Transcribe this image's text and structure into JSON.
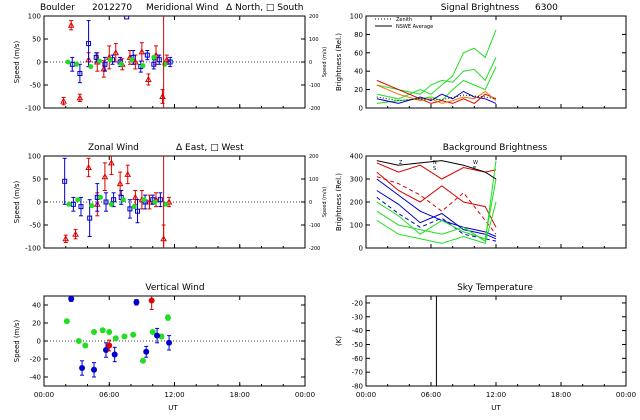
{
  "figure": {
    "site": "Boulder",
    "date_code": "2012270",
    "wavelength": "6300",
    "time_axis_label": "UT",
    "time_ticks": [
      "00:00",
      "06:00",
      "12:00",
      "18:00",
      "00:00"
    ]
  },
  "colors": {
    "north_east": "#dd0000",
    "south_west": "#0000cc",
    "zenith": "#22dd22",
    "orange": "#ee7700",
    "axis": "#000000"
  },
  "chart_data": [
    {
      "id": "meridional",
      "type": "scatter",
      "title": "Meridional Wind",
      "title_extra": "Δ North, □ South",
      "ylabel": "Speed (m/s)",
      "ylabel_right": "Speed (m/s)",
      "ylim": [
        -100,
        100
      ],
      "yticks": [
        -100,
        -50,
        0,
        50,
        100
      ],
      "right_ylim": [
        -200,
        200
      ],
      "right_yticks": [
        -200,
        -100,
        0,
        100,
        200
      ],
      "xlim": [
        0,
        24
      ],
      "series": [
        {
          "name": "North",
          "color": "#dd0000",
          "x": [
            1.8,
            2.5,
            3.3,
            4.1,
            4.9,
            5.5,
            6.0,
            6.6,
            7.2,
            7.9,
            8.4,
            9.0,
            9.6,
            10.3,
            10.9,
            11.3
          ],
          "y": [
            -85,
            80,
            -78,
            5,
            0,
            -15,
            10,
            20,
            -5,
            10,
            0,
            22,
            -38,
            15,
            -75,
            5
          ],
          "err": [
            8,
            10,
            8,
            15,
            20,
            18,
            25,
            20,
            12,
            15,
            15,
            20,
            12,
            20,
            15,
            10
          ]
        },
        {
          "name": "South",
          "color": "#0000cc",
          "x": [
            2.6,
            3.3,
            4.1,
            4.8,
            5.6,
            6.3,
            7.0,
            7.6,
            8.2,
            8.9,
            9.5,
            10.1,
            10.6,
            11.6
          ],
          "y": [
            -5,
            -25,
            40,
            10,
            -5,
            5,
            0,
            98,
            10,
            -10,
            15,
            -5,
            5,
            0
          ],
          "err": [
            15,
            20,
            50,
            10,
            15,
            10,
            10,
            0,
            15,
            12,
            10,
            10,
            10,
            10
          ]
        },
        {
          "name": "Zenith",
          "color": "#22dd22",
          "x": [
            2.2,
            3.0,
            4.3,
            5.1,
            6.1,
            7.1,
            8.1,
            9.1,
            10.1,
            11.1
          ],
          "y": [
            0,
            -5,
            -10,
            2,
            5,
            -5,
            5,
            -8,
            10,
            -5
          ],
          "err": [
            0,
            0,
            0,
            0,
            0,
            0,
            0,
            0,
            0,
            0
          ]
        }
      ]
    },
    {
      "id": "zonal",
      "type": "scatter",
      "title": "Zonal Wind",
      "title_extra": "Δ East, □ West",
      "ylabel": "Speed (m/s)",
      "ylabel_right": "Speed (m/s)",
      "ylim": [
        -100,
        100
      ],
      "yticks": [
        -100,
        -50,
        0,
        50,
        100
      ],
      "right_ylim": [
        -200,
        200
      ],
      "right_yticks": [
        -200,
        -100,
        0,
        100,
        200
      ],
      "xlim": [
        0,
        24
      ],
      "series": [
        {
          "name": "East",
          "color": "#dd0000",
          "x": [
            2.0,
            2.9,
            4.1,
            4.9,
            5.6,
            6.2,
            7.0,
            7.7,
            8.4,
            9.0,
            9.7,
            10.3,
            11.0,
            11.5
          ],
          "y": [
            -80,
            -70,
            75,
            -5,
            55,
            85,
            40,
            60,
            10,
            5,
            0,
            5,
            -80,
            0
          ],
          "err": [
            8,
            10,
            20,
            25,
            30,
            25,
            25,
            20,
            15,
            20,
            15,
            15,
            30,
            10
          ]
        },
        {
          "name": "West",
          "color": "#0000cc",
          "x": [
            1.9,
            2.7,
            3.4,
            4.2,
            4.9,
            5.7,
            6.4,
            7.1,
            7.9,
            8.6,
            9.3,
            10.0,
            10.7
          ],
          "y": [
            45,
            -5,
            -10,
            -35,
            10,
            0,
            5,
            10,
            -15,
            -20,
            0,
            5,
            5
          ],
          "err": [
            50,
            15,
            20,
            40,
            30,
            20,
            15,
            15,
            20,
            25,
            15,
            10,
            15
          ]
        },
        {
          "name": "Zenith",
          "color": "#22dd22",
          "x": [
            2.3,
            3.1,
            4.4,
            5.2,
            6.2,
            7.3,
            8.3,
            9.2,
            10.2,
            11.2
          ],
          "y": [
            -5,
            5,
            -8,
            10,
            -5,
            5,
            -10,
            5,
            0,
            -5
          ],
          "err": [
            0,
            0,
            0,
            0,
            0,
            0,
            0,
            0,
            0,
            0
          ]
        }
      ]
    },
    {
      "id": "vertical",
      "type": "scatter",
      "title": "Vertical Wind",
      "ylabel": "Speed (m/s)",
      "ylim": [
        -50,
        50
      ],
      "yticks": [
        -40,
        -20,
        0,
        20,
        40
      ],
      "xlim": [
        0,
        24
      ],
      "series": [
        {
          "name": "Zenith-green",
          "color": "#22dd22",
          "x": [
            2.1,
            3.2,
            3.8,
            4.6,
            5.4,
            6.0,
            6.6,
            7.4,
            8.2,
            9.1,
            10.0,
            10.8,
            11.4
          ],
          "y": [
            22,
            0,
            -5,
            10,
            12,
            10,
            3,
            5,
            7,
            -22,
            10,
            5,
            26
          ],
          "err": [
            0,
            0,
            0,
            0,
            0,
            0,
            0,
            0,
            0,
            0,
            0,
            0,
            3
          ]
        },
        {
          "name": "Zenith-blue",
          "color": "#0000cc",
          "x": [
            2.5,
            3.5,
            4.6,
            5.7,
            6.5,
            8.5,
            9.4,
            10.4,
            11.5
          ],
          "y": [
            47,
            -30,
            -32,
            -10,
            -15,
            43,
            -12,
            6,
            -2
          ],
          "err": [
            3,
            8,
            8,
            8,
            8,
            3,
            6,
            8,
            8
          ]
        },
        {
          "name": "Zenith-red",
          "color": "#dd0000",
          "x": [
            6.0,
            9.9
          ],
          "y": [
            -5,
            45
          ],
          "err": [
            6,
            10
          ]
        }
      ]
    },
    {
      "id": "signal",
      "type": "line",
      "title": "Signal Brightness",
      "title_extra": "6300",
      "ylabel": "Brightness (Rel.)",
      "ylim": [
        0,
        100
      ],
      "yticks": [
        0,
        20,
        40,
        60,
        80,
        100
      ],
      "xlim": [
        0,
        24
      ],
      "legend": [
        "Zenith",
        "NSWE Average"
      ],
      "series": [
        {
          "name": "green-1",
          "color": "#22dd22",
          "x": [
            1,
            3,
            5,
            6,
            7,
            8,
            9,
            10,
            11,
            12
          ],
          "y": [
            25,
            20,
            15,
            25,
            30,
            28,
            40,
            42,
            30,
            55
          ]
        },
        {
          "name": "green-2",
          "color": "#22dd22",
          "x": [
            1,
            3,
            5,
            6,
            7,
            8,
            9,
            10,
            11,
            12
          ],
          "y": [
            15,
            10,
            20,
            15,
            25,
            35,
            60,
            65,
            55,
            85
          ]
        },
        {
          "name": "green-3",
          "color": "#22dd22",
          "x": [
            1,
            3,
            5,
            6,
            7,
            8,
            9,
            10,
            11,
            12
          ],
          "y": [
            5,
            8,
            10,
            12,
            8,
            20,
            30,
            25,
            20,
            45
          ]
        },
        {
          "name": "blue",
          "color": "#0000cc",
          "x": [
            1,
            3,
            5,
            6,
            7,
            8,
            9,
            10,
            11,
            12
          ],
          "y": [
            10,
            5,
            12,
            8,
            15,
            10,
            18,
            12,
            10,
            5
          ]
        },
        {
          "name": "red",
          "color": "#dd0000",
          "x": [
            1,
            3,
            5,
            6,
            7,
            8,
            9,
            10,
            11,
            12
          ],
          "y": [
            30,
            20,
            10,
            5,
            8,
            5,
            10,
            5,
            15,
            10
          ]
        },
        {
          "name": "orange",
          "color": "#ee7700",
          "x": [
            1,
            3,
            5,
            6,
            7,
            8,
            9,
            10,
            11,
            12
          ],
          "y": [
            25,
            15,
            8,
            10,
            5,
            8,
            12,
            10,
            18,
            8
          ]
        },
        {
          "name": "black-dotted",
          "color": "#000000",
          "dash": "1,2",
          "x": [
            1,
            3,
            5,
            7,
            9,
            11,
            12
          ],
          "y": [
            12,
            8,
            10,
            9,
            14,
            12,
            10
          ]
        }
      ]
    },
    {
      "id": "background",
      "type": "line",
      "title": "Background Brightness",
      "ylabel": "Brightness (Rel.)",
      "ylim": [
        0,
        400
      ],
      "yticks": [
        0,
        100,
        200,
        300,
        400
      ],
      "xlim": [
        0,
        24
      ],
      "legend_keys": [
        "Z",
        "N",
        "W",
        "S",
        "E"
      ],
      "series": [
        {
          "name": "red-1",
          "color": "#dd0000",
          "x": [
            1,
            3,
            5,
            7,
            9,
            11,
            12
          ],
          "y": [
            370,
            330,
            360,
            300,
            350,
            330,
            340
          ]
        },
        {
          "name": "red-2",
          "color": "#dd0000",
          "x": [
            1,
            3,
            5,
            7,
            9,
            11,
            12
          ],
          "y": [
            330,
            250,
            200,
            270,
            200,
            180,
            90
          ]
        },
        {
          "name": "red-3",
          "color": "#dd0000",
          "dash": "4,3",
          "x": [
            1,
            3,
            5,
            7,
            9,
            11,
            12
          ],
          "y": [
            310,
            280,
            230,
            160,
            240,
            120,
            60
          ]
        },
        {
          "name": "blue-1",
          "color": "#0000cc",
          "x": [
            1,
            3,
            5,
            7,
            9,
            11,
            12
          ],
          "y": [
            300,
            230,
            160,
            120,
            90,
            70,
            50
          ]
        },
        {
          "name": "blue-2",
          "color": "#0000cc",
          "x": [
            1,
            3,
            5,
            7,
            9,
            11,
            12
          ],
          "y": [
            250,
            190,
            110,
            150,
            80,
            60,
            40
          ]
        },
        {
          "name": "blue-3",
          "color": "#0000cc",
          "dash": "4,3",
          "x": [
            1,
            3,
            5,
            7,
            9,
            11,
            12
          ],
          "y": [
            220,
            150,
            90,
            130,
            60,
            40,
            30
          ]
        },
        {
          "name": "green-1",
          "color": "#22dd22",
          "x": [
            1,
            3,
            5,
            7,
            9,
            11,
            12
          ],
          "y": [
            200,
            140,
            60,
            120,
            70,
            40,
            300
          ]
        },
        {
          "name": "green-2",
          "color": "#22dd22",
          "x": [
            1,
            3,
            5,
            7,
            9,
            11,
            12
          ],
          "y": [
            160,
            100,
            80,
            60,
            90,
            30,
            380
          ]
        },
        {
          "name": "green-3",
          "color": "#22dd22",
          "x": [
            1,
            3,
            5,
            7,
            9,
            11,
            12
          ],
          "y": [
            120,
            60,
            40,
            20,
            50,
            20,
            200
          ]
        },
        {
          "name": "black-1",
          "color": "#000000",
          "x": [
            1,
            3,
            5,
            7,
            9,
            11,
            12
          ],
          "y": [
            380,
            360,
            370,
            380,
            360,
            330,
            300
          ]
        }
      ]
    },
    {
      "id": "sky",
      "type": "line",
      "title": "Sky Temperature",
      "ylabel": "(K)",
      "ylim": [
        -80,
        -15
      ],
      "yticks": [
        -80,
        -70,
        -60,
        -50,
        -40,
        -30,
        -20
      ],
      "xlim": [
        0,
        24
      ],
      "vline_x": 6.5,
      "series": []
    }
  ]
}
